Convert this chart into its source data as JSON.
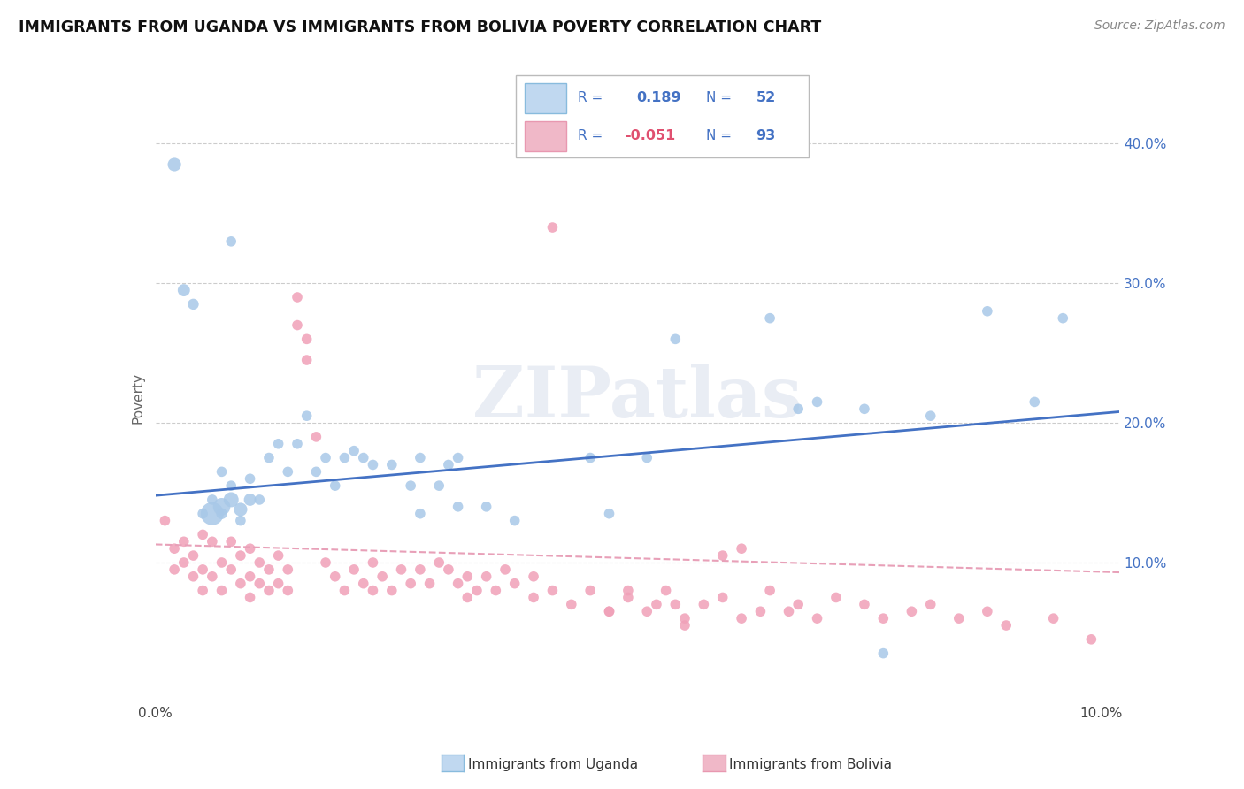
{
  "title": "IMMIGRANTS FROM UGANDA VS IMMIGRANTS FROM BOLIVIA POVERTY CORRELATION CHART",
  "source": "Source: ZipAtlas.com",
  "ylabel": "Poverty",
  "xlim": [
    0.0,
    0.102
  ],
  "ylim": [
    0.0,
    0.435
  ],
  "x_tick_positions": [
    0.0,
    0.02,
    0.04,
    0.06,
    0.08,
    0.1
  ],
  "x_tick_labels": [
    "0.0%",
    "",
    "",
    "",
    "",
    "10.0%"
  ],
  "y_tick_positions": [
    0.1,
    0.2,
    0.3,
    0.4
  ],
  "y_tick_labels": [
    "10.0%",
    "20.0%",
    "30.0%",
    "40.0%"
  ],
  "uganda_color": "#A8C8E8",
  "bolivia_color": "#F0A0B8",
  "uganda_line_color": "#4472C4",
  "bolivia_line_color": "#E8A0B8",
  "R_uganda": 0.189,
  "N_uganda": 52,
  "R_bolivia": -0.051,
  "N_bolivia": 93,
  "watermark": "ZIPatlas",
  "uganda_line_x0": 0.0,
  "uganda_line_y0": 0.148,
  "uganda_line_x1": 0.102,
  "uganda_line_y1": 0.208,
  "bolivia_line_x0": 0.0,
  "bolivia_line_y0": 0.113,
  "bolivia_line_x1": 0.102,
  "bolivia_line_y1": 0.093
}
